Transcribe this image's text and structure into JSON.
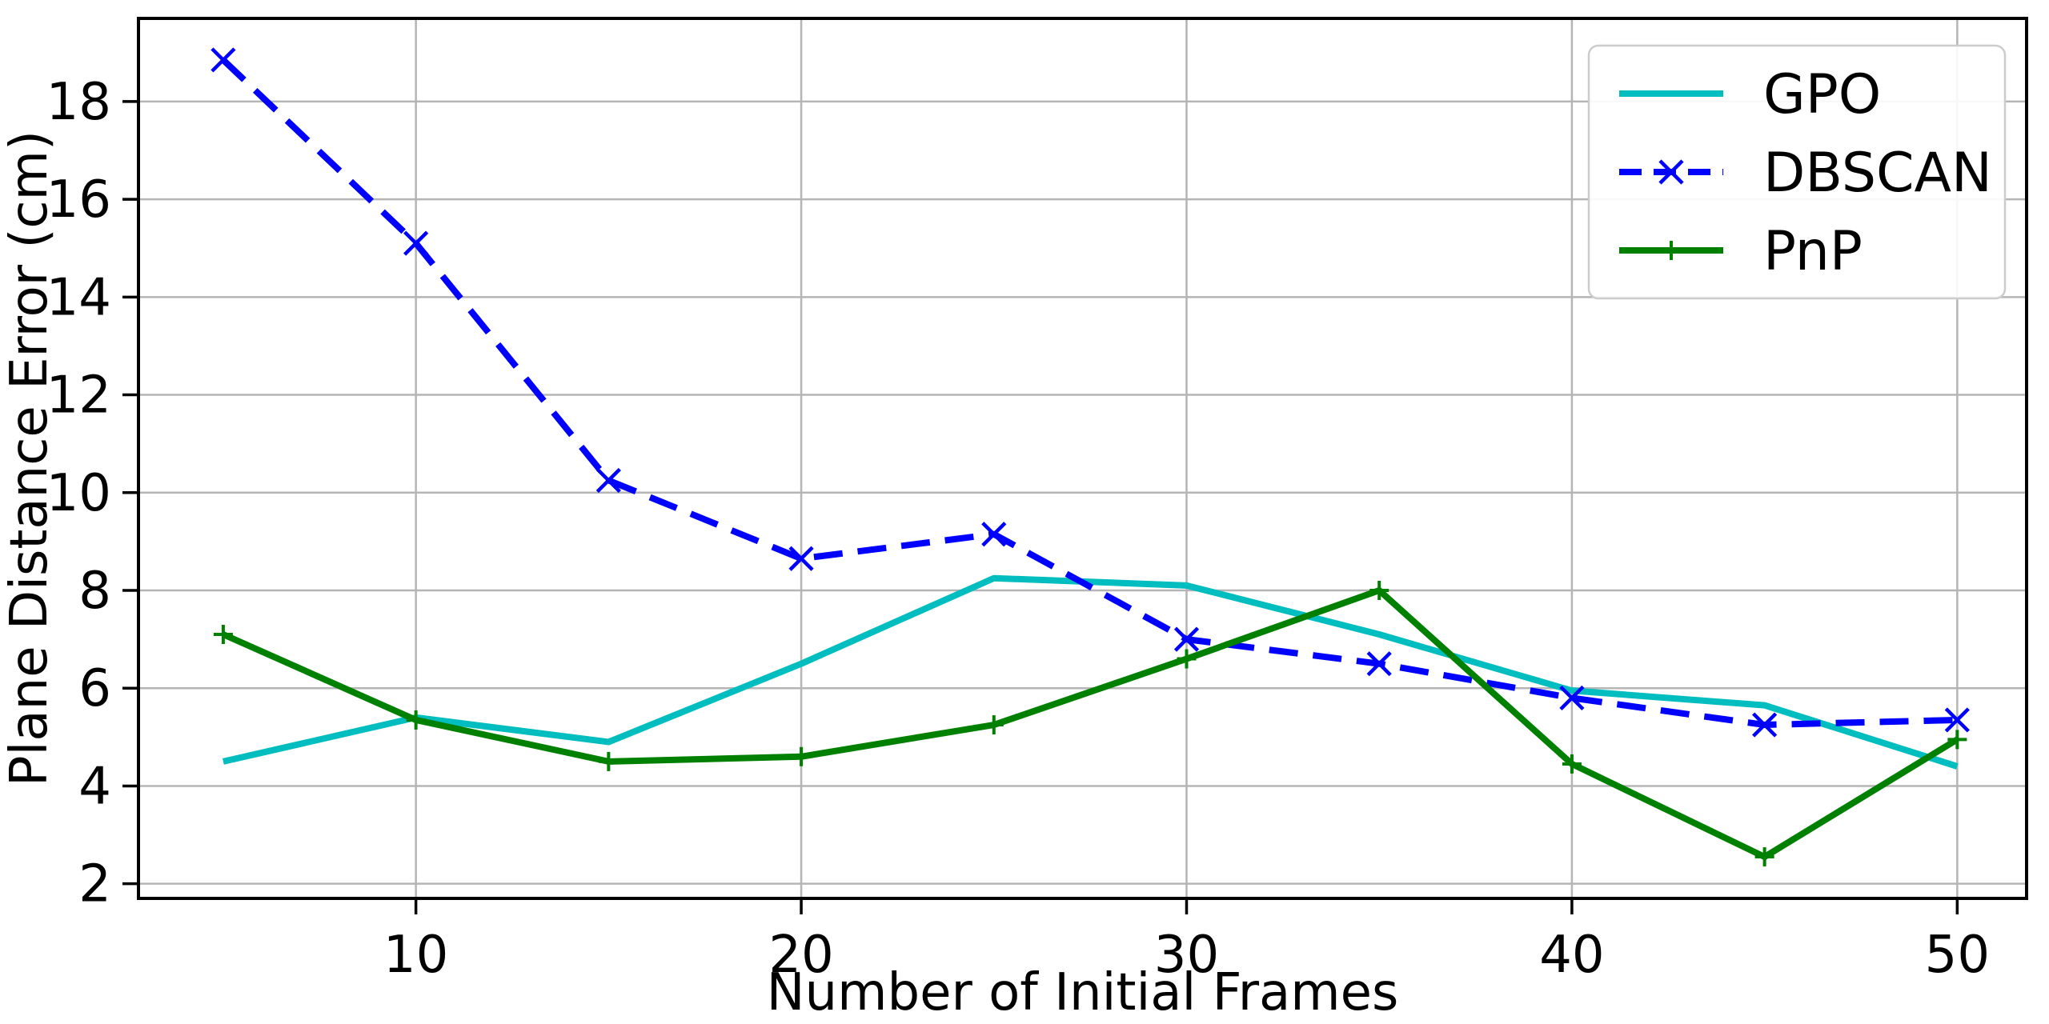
{
  "chart_data": {
    "type": "line",
    "title": "",
    "xlabel": "Number of Initial Frames",
    "ylabel": "Plane Distance Error (cm)",
    "x": [
      5,
      10,
      15,
      20,
      25,
      30,
      35,
      40,
      45,
      50
    ],
    "series": [
      {
        "name": "GPO",
        "color": "#00bdbf",
        "line_style": "solid",
        "marker": "none",
        "values": [
          4.5,
          5.4,
          4.9,
          6.5,
          8.25,
          8.1,
          7.1,
          5.95,
          5.65,
          4.4
        ]
      },
      {
        "name": "DBSCAN",
        "color": "#0000ff",
        "line_style": "dashed",
        "marker": "x",
        "values": [
          18.85,
          15.1,
          10.25,
          8.65,
          9.15,
          7.0,
          6.5,
          5.8,
          5.25,
          5.35
        ]
      },
      {
        "name": "PnP",
        "color": "#008000",
        "line_style": "solid",
        "marker": "plus",
        "values": [
          7.1,
          5.35,
          4.5,
          4.6,
          5.25,
          6.6,
          8.0,
          4.45,
          2.55,
          4.95
        ]
      }
    ],
    "xticks": [
      10,
      20,
      30,
      40,
      50
    ],
    "yticks": [
      2,
      4,
      6,
      8,
      10,
      12,
      14,
      16,
      18
    ],
    "xlim": [
      2.8,
      51.8
    ],
    "ylim": [
      1.7,
      19.7
    ],
    "grid": true,
    "legend_position": "upper right",
    "legend_labels": [
      "GPO",
      "DBSCAN",
      "PnP"
    ]
  },
  "colors": {
    "background": "#ffffff",
    "grid": "#b5b5b5",
    "spine": "#000000",
    "text": "#000000"
  }
}
